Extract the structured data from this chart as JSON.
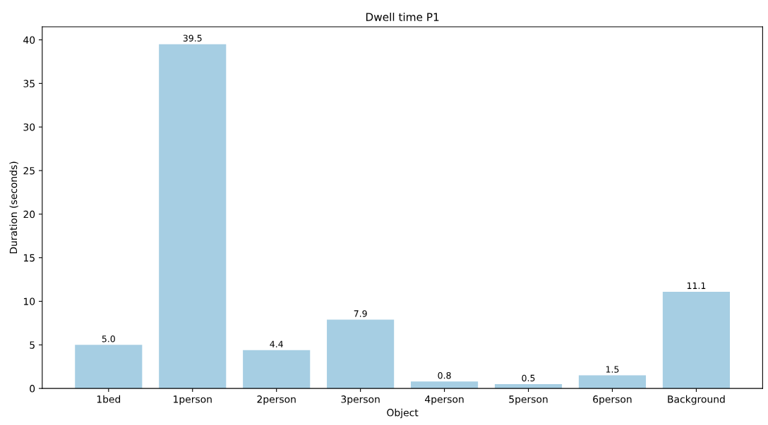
{
  "chart_data": {
    "type": "bar",
    "title": "Dwell time P1",
    "xlabel": "Object",
    "ylabel": "Duration (seconds)",
    "categories": [
      "1bed",
      "1person",
      "2person",
      "3person",
      "4person",
      "5person",
      "6person",
      "Background"
    ],
    "values": [
      5.0,
      39.5,
      4.4,
      7.9,
      0.8,
      0.5,
      1.5,
      11.1
    ],
    "color": "#a6cee3",
    "ylim": [
      0,
      41.5
    ],
    "yticks": [
      0,
      5,
      10,
      15,
      20,
      25,
      30,
      35,
      40
    ],
    "value_labels": [
      "5.0",
      "39.5",
      "4.4",
      "7.9",
      "0.8",
      "0.5",
      "1.5",
      "11.1"
    ],
    "grid": false,
    "legend": false
  }
}
